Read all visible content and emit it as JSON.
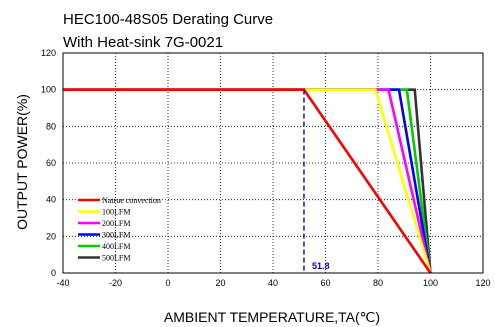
{
  "chart_data": {
    "type": "line",
    "title": "HEC100-48S05 Derating Curve",
    "subtitle": "With Heat-sink 7G-0021",
    "xlabel": "AMBIENT TEMPERATURE,TA(℃)",
    "ylabel": "OUTPUT POWER(%)",
    "xlim": [
      -40,
      120
    ],
    "ylim": [
      0,
      120
    ],
    "xticks": [
      -40,
      -20,
      0,
      20,
      40,
      60,
      80,
      100,
      120
    ],
    "yticks": [
      0,
      20,
      40,
      60,
      80,
      100,
      120
    ],
    "xtick_labels": [
      "-40",
      "-20",
      "0",
      "20",
      "40",
      "60",
      "80",
      "100",
      "120"
    ],
    "ytick_labels": [
      "0",
      "20",
      "40",
      "60",
      "80",
      "100",
      "120"
    ],
    "grid": true,
    "legend_position": "bottom-left",
    "series": [
      {
        "name": "Natrue convection",
        "color": "#ff0000",
        "x": [
          -40,
          51.8,
          100
        ],
        "y": [
          100,
          100,
          0
        ]
      },
      {
        "name": "100LFM",
        "color": "#ffff00",
        "x": [
          -40,
          79,
          100
        ],
        "y": [
          100,
          100,
          0
        ]
      },
      {
        "name": "200LFM",
        "color": "#ff00ff",
        "x": [
          -40,
          84,
          100
        ],
        "y": [
          100,
          100,
          0
        ]
      },
      {
        "name": "300LFM",
        "color": "#0000ff",
        "x": [
          -40,
          88,
          100
        ],
        "y": [
          100,
          100,
          0
        ]
      },
      {
        "name": "400LFM",
        "color": "#00cc00",
        "x": [
          -40,
          91,
          100
        ],
        "y": [
          100,
          100,
          0
        ]
      },
      {
        "name": "500LFM",
        "color": "#333333",
        "x": [
          -40,
          94,
          100
        ],
        "y": [
          100,
          100,
          0
        ]
      }
    ],
    "annotations": [
      {
        "text": "51.8",
        "x": 51.8,
        "color": "#0000cc"
      }
    ]
  }
}
